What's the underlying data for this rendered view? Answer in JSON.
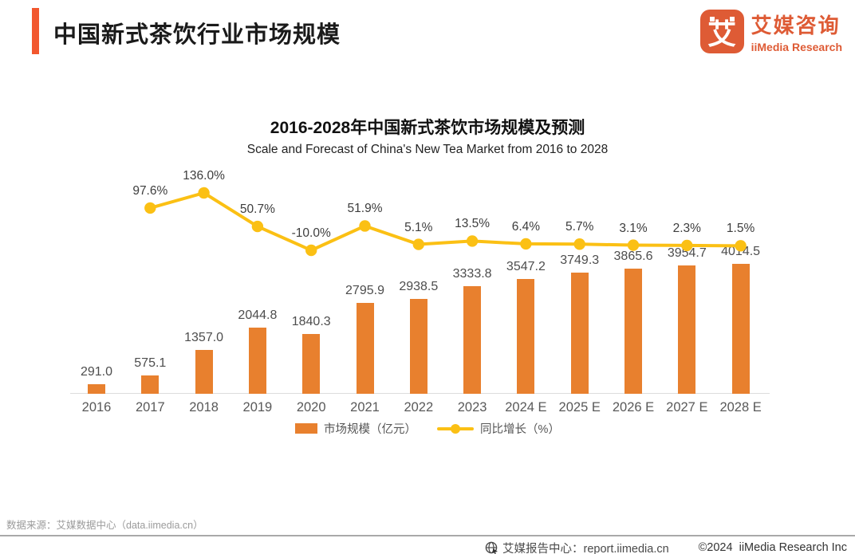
{
  "header": {
    "title": "中国新式茶饮行业市场规模"
  },
  "logo": {
    "glyph": "艾",
    "name_cn": "艾媒咨询",
    "name_en": "iiMedia Research"
  },
  "colors": {
    "accent": "#F2572E",
    "logo_orange": "#DE5B35",
    "bar": "#E8802E",
    "line": "#FBC014"
  },
  "chart_data": {
    "type": "bar",
    "title": "2016-2028年中国新式茶饮市场规模及预测",
    "subtitle": "Scale and Forecast of China's New Tea Market from 2016 to 2028",
    "categories": [
      "2016",
      "2017",
      "2018",
      "2019",
      "2020",
      "2021",
      "2022",
      "2023",
      "2024 E",
      "2025 E",
      "2026 E",
      "2027 E",
      "2028 E"
    ],
    "series": [
      {
        "name": "市场规模（亿元）",
        "type": "bar",
        "color": "#E8802E",
        "values": [
          291.0,
          575.1,
          1357.0,
          2044.8,
          1840.3,
          2795.9,
          2938.5,
          3333.8,
          3547.2,
          3749.3,
          3865.6,
          3954.7,
          4014.5
        ],
        "labels": [
          "291.0",
          "575.1",
          "1357.0",
          "2044.8",
          "1840.3",
          "2795.9",
          "2938.5",
          "3333.8",
          "3547.2",
          "3749.3",
          "3865.6",
          "3954.7",
          "4014.5"
        ]
      },
      {
        "name": "同比增长（%）",
        "type": "line",
        "color": "#FBC014",
        "values": [
          null,
          97.6,
          136.0,
          50.7,
          -10.0,
          51.9,
          5.1,
          13.5,
          6.4,
          5.7,
          3.1,
          2.3,
          1.5
        ],
        "labels": [
          null,
          "97.6%",
          "136.0%",
          "50.7%",
          "-10.0%",
          "51.9%",
          "5.1%",
          "13.5%",
          "6.4%",
          "5.7%",
          "3.1%",
          "2.3%",
          "1.5%"
        ]
      }
    ],
    "xlabel": "",
    "ylabel": "",
    "y1lim": [
      0,
      4200
    ],
    "y2lim": [
      -20,
      150
    ],
    "grid": false,
    "legend_position": "bottom"
  },
  "source": "数据来源：艾媒数据中心（data.iimedia.cn）",
  "footer": {
    "report_center": "艾媒报告中心：report.iimedia.cn",
    "copyright": "©2024  iiMedia Research Inc"
  }
}
